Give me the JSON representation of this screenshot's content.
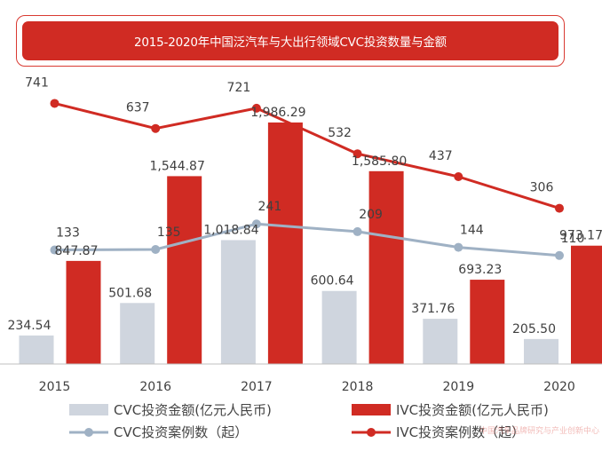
{
  "chart_data": {
    "type": "bar+line",
    "title": "2015-2020年中国泛汽车与大出行领域CVC投资数量与金额",
    "categories": [
      "2015",
      "2016",
      "2017",
      "2018",
      "2019",
      "2020"
    ],
    "bars": [
      {
        "name": "CVC投资金额(亿元人民币)",
        "color": "#cfd5de",
        "values": [
          234.54,
          501.68,
          1018.84,
          600.64,
          371.76,
          205.5
        ],
        "labels": [
          "234.54",
          "501.68",
          "1,018.84",
          "600.64",
          "371.76",
          "205.50"
        ]
      },
      {
        "name": "IVC投资金额(亿元人民币)",
        "color": "#d02b23",
        "values": [
          847.87,
          1544.87,
          1986.29,
          1585.8,
          693.23,
          973.17
        ],
        "labels": [
          "847.87",
          "1,544.87",
          "1,986.29",
          "1,585.80",
          "693.23",
          "973.17"
        ]
      }
    ],
    "lines": [
      {
        "name": "CVC投资案例数（起）",
        "color": "#9fb1c4",
        "values": [
          133,
          135,
          241,
          209,
          144,
          110
        ],
        "labels": [
          "133",
          "135",
          "241",
          "209",
          "144",
          "110"
        ]
      },
      {
        "name": "IVC投资案例数（起）",
        "color": "#d02b23",
        "values": [
          741,
          637,
          721,
          532,
          437,
          306
        ],
        "labels": [
          "741",
          "637",
          "721",
          "532",
          "437",
          "306"
        ]
      }
    ],
    "bar_axis_range": [
      0,
      2300
    ],
    "line_axis_range": [
      -340,
      820
    ],
    "grid": false,
    "legend_position": "bottom"
  },
  "watermark_text": "中国汽车品牌研究与产业创新中心"
}
